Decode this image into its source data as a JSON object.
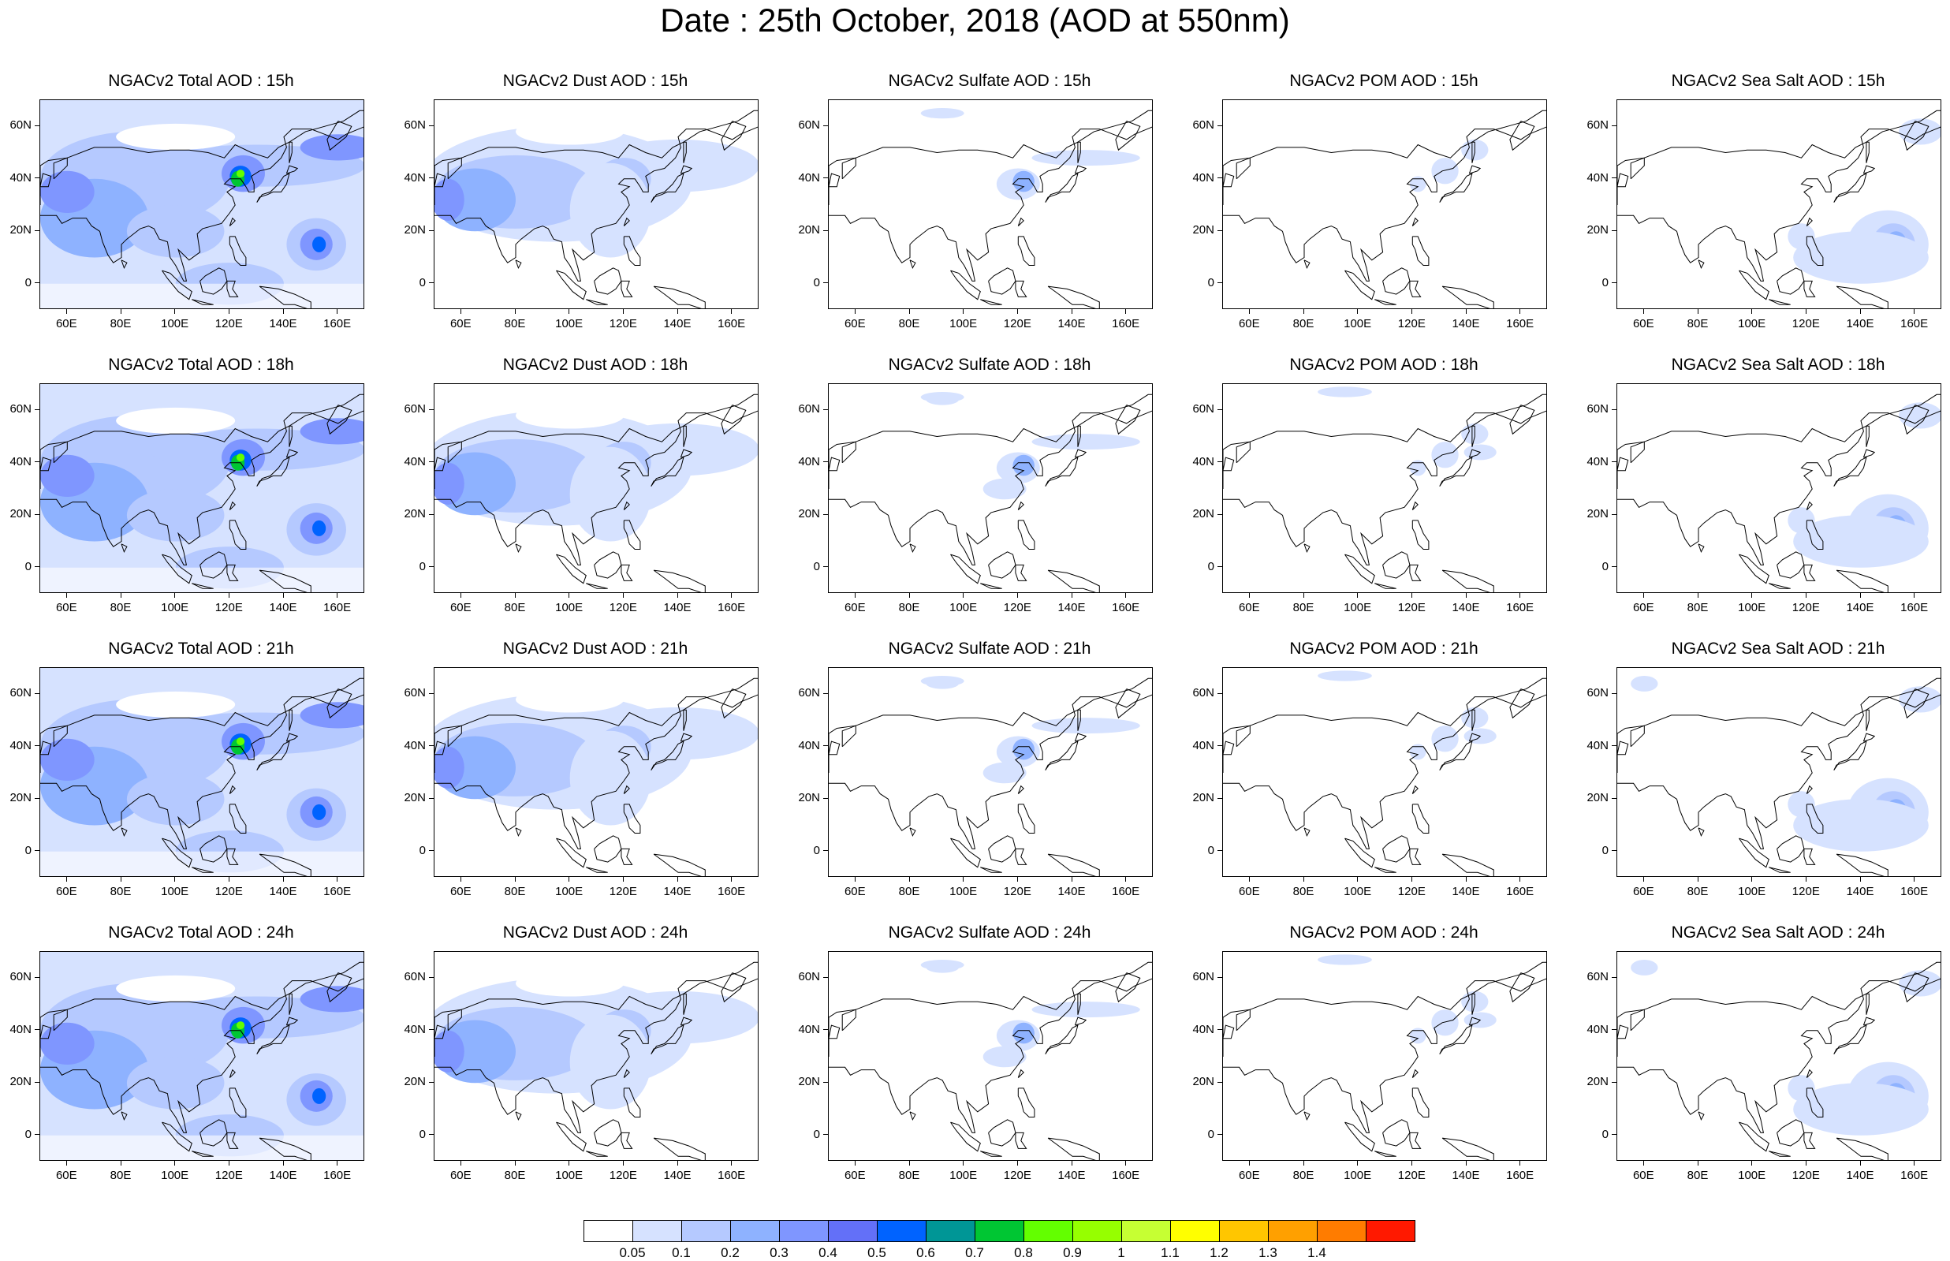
{
  "title": "Date : 25th October, 2018 (AOD at 550nm)",
  "colors": {
    "levels": [
      "#ffffff",
      "#d6e2ff",
      "#b5c9ff",
      "#8eb2ff",
      "#7f96ff",
      "#6370f8",
      "#0063ff",
      "#009696",
      "#00c633",
      "#63ff00",
      "#96ff00",
      "#c6ff33",
      "#ffff00",
      "#ffc600",
      "#ffa000",
      "#ff7c00",
      "#ff1900"
    ],
    "coastline": "#000000"
  },
  "colorbar": {
    "labels": [
      "0.05",
      "0.1",
      "0.2",
      "0.3",
      "0.4",
      "0.5",
      "0.6",
      "0.7",
      "0.8",
      "0.9",
      "1",
      "1.1",
      "1.2",
      "1.3",
      "1.4"
    ]
  },
  "axes": {
    "lon_labels": [
      "60E",
      "80E",
      "100E",
      "120E",
      "140E",
      "160E"
    ],
    "lat_labels": [
      "60N",
      "40N",
      "20N",
      "0"
    ],
    "lon_range": [
      50,
      170
    ],
    "lat_range": [
      -10,
      70
    ]
  },
  "species": [
    "total",
    "dust",
    "sulfate",
    "pom",
    "seasalt"
  ],
  "panels": [
    [
      "NGACv2 Total AOD : 15h",
      "NGACv2 Dust AOD : 15h",
      "NGACv2 Sulfate AOD : 15h",
      "NGACv2 POM AOD : 15h",
      "NGACv2 Sea Salt AOD : 15h"
    ],
    [
      "NGACv2 Total AOD : 18h",
      "NGACv2 Dust AOD : 18h",
      "NGACv2 Sulfate AOD : 18h",
      "NGACv2 POM AOD : 18h",
      "NGACv2 Sea Salt AOD : 18h"
    ],
    [
      "NGACv2 Total AOD : 21h",
      "NGACv2 Dust AOD : 21h",
      "NGACv2 Sulfate AOD : 21h",
      "NGACv2 POM AOD : 21h",
      "NGACv2 Sea Salt AOD : 21h"
    ],
    [
      "NGACv2 Total AOD : 24h",
      "NGACv2 Dust AOD : 24h",
      "NGACv2 Sulfate AOD : 24h",
      "NGACv2 POM AOD : 24h",
      "NGACv2 Sea Salt  AOD : 24h"
    ]
  ]
}
